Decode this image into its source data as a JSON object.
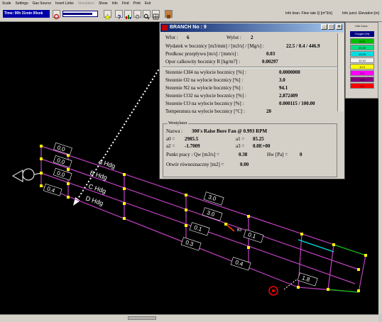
{
  "menu": [
    "Scale",
    "Settings",
    "Gas Source",
    "Insert Links",
    "Simulation",
    "Show",
    "Info",
    "Find",
    "Print",
    "Exit"
  ],
  "toolbar": {
    "time_label": "Time: 90h 31min 00sek",
    "slider_value": 0.85,
    "status1_label": "Info bran. Flow rate Q [m^3/s]",
    "status2_label": "Info junct. Elevation [m]"
  },
  "dialog": {
    "title": "BRANCH No : 9",
    "inlet_label": "Wlot :",
    "inlet_value": "6",
    "outlet_label": "Wylot :",
    "outlet_value": "2",
    "flow_label": "Wydatek w bocznicy [m3/min] / [m3/s] / [Mg/s] :",
    "flow_value": "22.5 / 0.4 / 446.9",
    "velocity_label": "Predkosc przeplywu [m/s] / [mm/s] :",
    "velocity_value": "0.03",
    "resistance_label": "Opor calkowity bocznicy  R [kg/m7] :",
    "resistance_value": "0.00297",
    "ch4_label": "Stezenie CH4 na wylocie bocznicy [%] :",
    "ch4_value": "0.0000000",
    "o2_label": "Stezenie O2 na wylocie bocznicy [%] :",
    "o2_value": "3.0",
    "n2_label": "Stezenie N2 na wylocie bocznicy [%] :",
    "n2_value": "94.1",
    "co2_label": "Stezenie CO2 na wylocie bocznicy [%] :",
    "co2_value": "2.872409",
    "co_label": "Stezenie CO na wylocie bocznicy [%] :",
    "co_value": "0.000115 / 100.00",
    "temp_label": "Temperatura na wylocie bocznicy [°C] :",
    "temp_value": "20",
    "fan": {
      "group_title": "Wentylator",
      "name_label": "Nazwa :",
      "name_value": "300's Raise Bore Fan @ 0.993 RPM",
      "a0_label": "a0 =",
      "a0_value": "2985.5",
      "a1_label": "a1 =",
      "a1_value": "85.25",
      "a2_label": "a2 =",
      "a2_value": "-1.7009",
      "a3_label": "a3 =",
      "a3_value": "0.0E+00",
      "work_label": "Punkt pracy :  Qw [m3/s] =",
      "work_value": "0.38",
      "hw_label": "Hw [Pa] =",
      "hw_value": "0",
      "equiv_label": "Otwór równoznaczny [m2] =",
      "equiv_value": "0.00"
    }
  },
  "legend": {
    "title": "Info Conc.",
    "header": "Oxygen [%]",
    "items": [
      {
        "label": "20.9",
        "color": "#00c000"
      },
      {
        "label": "20.30",
        "color": "#00e080"
      },
      {
        "label": "19.25",
        "color": "#00e0e0"
      },
      {
        "label": "11.10",
        "color": "#f0f0f0"
      },
      {
        "label": "10.0",
        "color": "#ffff00"
      },
      {
        "label": "5.5",
        "color": "#ff00ff"
      },
      {
        "label": "2.5",
        "color": "#800080"
      },
      {
        "label": "0.0",
        "color": "#ff0000"
      }
    ]
  },
  "map": {
    "roads": [
      "A Hdg",
      "B Hdg",
      "C Hdg",
      "D Hdg"
    ],
    "left_values": [
      "0.0",
      "0.0",
      "0.0",
      "0.4"
    ],
    "inner_values": [
      "3.0",
      "3.0",
      "0.1",
      "0.3",
      "0.1",
      "0.4",
      "1.8"
    ],
    "node_label": "B3"
  }
}
